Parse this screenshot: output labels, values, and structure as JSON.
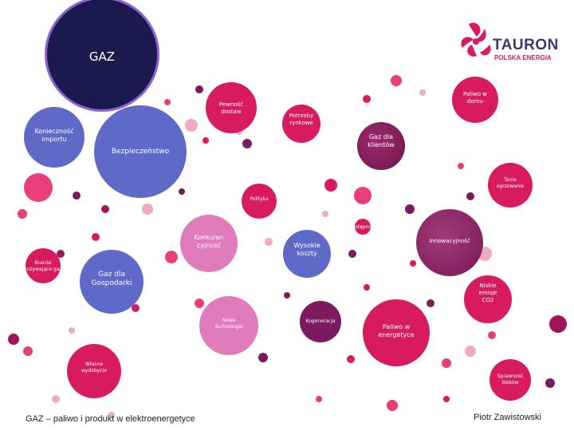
{
  "colors": {
    "navy": "#1a1a4e",
    "magenta": "#d81b60",
    "purple": "#7b1a5e",
    "pink": "#e83f7a",
    "lightpink": "#f0a9c7",
    "mauve": "#e07cbc",
    "blue": "#5f6ac8",
    "darkmagenta": "#a0155a",
    "brand_text": "#3a3a6e",
    "brand_accent": "#d81b60"
  },
  "logo": {
    "icon": "tauron-flower-icon",
    "name": "TAURON",
    "tagline": "POLSKA ENERGIA"
  },
  "bubbles": [
    {
      "label": "GAZ",
      "color": "navy"
    },
    {
      "label": "Pewność\ndostaw",
      "color": "magenta"
    },
    {
      "label": "Potrzeby\nrynkowe",
      "color": "magenta"
    },
    {
      "label": "Paliwo w\ndomu",
      "color": "magenta"
    },
    {
      "label": "Gaz dla\nklientów",
      "color": "purple"
    },
    {
      "label": "Konieczność\nimportu",
      "color": "blue"
    },
    {
      "label": "Bezpieczeństwo",
      "color": "blue"
    },
    {
      "label": "Tanie\nogrzewanie",
      "color": "magenta"
    },
    {
      "label": "Polityka",
      "color": "magenta"
    },
    {
      "label": "Dostępność",
      "color": "magenta"
    },
    {
      "label": "Innowacyjność",
      "color": "purple"
    },
    {
      "label": "Konkuren\ncyjność",
      "color": "mauve"
    },
    {
      "label": "Wysokie\nkoszty",
      "color": "blue"
    },
    {
      "label": "Branże\nzużywające gaz",
      "color": "magenta"
    },
    {
      "label": "Gaz dla\nGospodarki",
      "color": "blue"
    },
    {
      "label": "Niskie\nemisje\nCO2",
      "color": "magenta"
    },
    {
      "label": "Nowe\nTechnologie",
      "color": "mauve"
    },
    {
      "label": "Kogeneracja",
      "color": "purple"
    },
    {
      "label": "Paliwo w\nenergetyce",
      "color": "magenta"
    },
    {
      "label": "Własne\nwydobycie",
      "color": "magenta"
    },
    {
      "label": "Sprawność\nbloków",
      "color": "magenta"
    }
  ],
  "dots": [
    {
      "color": "magenta"
    },
    {
      "color": "purple"
    },
    {
      "color": "lightpink"
    },
    {
      "color": "pink"
    },
    {
      "color": "purple"
    },
    {
      "color": "magenta"
    },
    {
      "color": "pink"
    },
    {
      "color": "lightpink"
    },
    {
      "color": "magenta"
    },
    {
      "color": "lightpink"
    },
    {
      "color": "pink"
    },
    {
      "color": "purple"
    },
    {
      "color": "darkmagenta"
    },
    {
      "color": "pink"
    },
    {
      "color": "purple"
    },
    {
      "color": "lightpink"
    },
    {
      "color": "magenta"
    },
    {
      "color": "pink"
    },
    {
      "color": "purple"
    },
    {
      "color": "purple"
    },
    {
      "color": "pink"
    },
    {
      "color": "lightpink"
    },
    {
      "color": "magenta"
    },
    {
      "color": "darkmagenta"
    },
    {
      "color": "pink"
    },
    {
      "color": "magenta"
    },
    {
      "color": "lightpink"
    },
    {
      "color": "purple"
    },
    {
      "color": "magenta"
    },
    {
      "color": "lightpink"
    },
    {
      "color": "pink"
    },
    {
      "color": "purple"
    },
    {
      "color": "magenta"
    },
    {
      "color": "darkmagenta"
    },
    {
      "color": "pink"
    },
    {
      "color": "lightpink"
    },
    {
      "color": "purple"
    },
    {
      "color": "magenta"
    },
    {
      "color": "pink"
    },
    {
      "color": "lightpink"
    },
    {
      "color": "darkmagenta"
    },
    {
      "color": "pink"
    },
    {
      "color": "magenta"
    },
    {
      "color": "purple"
    },
    {
      "color": "lightpink"
    },
    {
      "color": "pink"
    },
    {
      "color": "magenta"
    },
    {
      "color": "purple"
    },
    {
      "color": "pink"
    },
    {
      "color": "lightpink"
    }
  ],
  "footer": {
    "left": "GAZ – paliwo i produkt w elektroenergetyce",
    "right": "Piotr Zawistowski"
  }
}
